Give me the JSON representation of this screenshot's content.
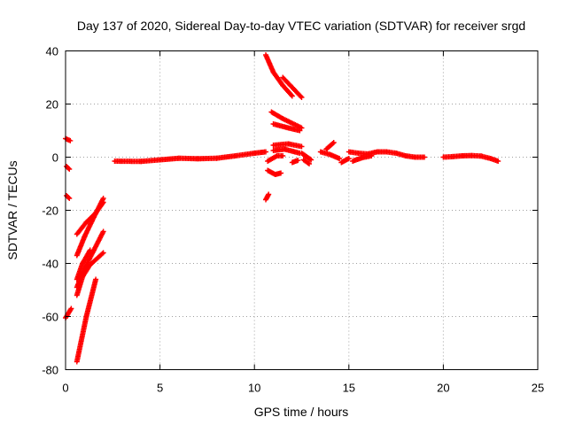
{
  "chart_data": {
    "type": "scatter",
    "title": "Day 137 of 2020, Sidereal Day-to-day VTEC variation (SDTVAR) for receiver srgd",
    "xlabel": "GPS time / hours",
    "ylabel": "SDTVAR / TECUs",
    "xlim": [
      0,
      25
    ],
    "ylim": [
      -80,
      40
    ],
    "xticks": [
      0,
      5,
      10,
      15,
      20,
      25
    ],
    "yticks": [
      -80,
      -60,
      -40,
      -20,
      0,
      20,
      40
    ],
    "grid": true,
    "marker": "+",
    "series": [
      {
        "name": "SDTVAR",
        "color": "#ff0000",
        "segments": [
          [
            [
              0.0,
              7.0
            ],
            [
              0.25,
              6.2
            ]
          ],
          [
            [
              0.05,
              -3.5
            ],
            [
              0.2,
              -4.5
            ]
          ],
          [
            [
              0.05,
              -14.5
            ],
            [
              0.2,
              -15.5
            ]
          ],
          [
            [
              0.0,
              -60.5
            ],
            [
              0.3,
              -57.0
            ]
          ],
          [
            [
              0.6,
              -77.0
            ],
            [
              1.1,
              -60.0
            ],
            [
              1.6,
              -46.0
            ]
          ],
          [
            [
              0.6,
              -52.0
            ],
            [
              0.9,
              -45.0
            ],
            [
              1.3,
              -40.5
            ],
            [
              2.0,
              -36.0
            ]
          ],
          [
            [
              0.6,
              -49.0
            ],
            [
              1.0,
              -42.0
            ],
            [
              1.5,
              -35.0
            ],
            [
              2.0,
              -28.0
            ]
          ],
          [
            [
              0.6,
              -46.0
            ],
            [
              0.9,
              -40.0
            ],
            [
              1.3,
              -35.0
            ]
          ],
          [
            [
              0.6,
              -37.0
            ],
            [
              1.0,
              -30.0
            ],
            [
              1.4,
              -24.0
            ],
            [
              2.0,
              -15.5
            ]
          ],
          [
            [
              0.6,
              -29.0
            ],
            [
              1.1,
              -24.5
            ],
            [
              1.6,
              -21.0
            ],
            [
              2.0,
              -17.0
            ]
          ],
          [
            [
              2.6,
              -1.5
            ],
            [
              4.0,
              -1.6
            ],
            [
              5.0,
              -1.0
            ],
            [
              6.0,
              -0.4
            ],
            [
              7.0,
              -0.6
            ],
            [
              8.0,
              -0.4
            ],
            [
              9.0,
              0.5
            ],
            [
              10.0,
              1.5
            ],
            [
              10.6,
              2.0
            ]
          ],
          [
            [
              10.6,
              38.5
            ],
            [
              11.0,
              32.0
            ],
            [
              11.5,
              27.0
            ],
            [
              12.0,
              23.0
            ]
          ],
          [
            [
              11.5,
              30.0
            ],
            [
              11.9,
              27.0
            ],
            [
              12.5,
              22.5
            ]
          ],
          [
            [
              10.9,
              17.0
            ],
            [
              11.5,
              14.5
            ],
            [
              12.5,
              11.0
            ]
          ],
          [
            [
              11.0,
              12.5
            ],
            [
              11.8,
              11.0
            ],
            [
              12.4,
              10.0
            ]
          ],
          [
            [
              11.0,
              4.5
            ],
            [
              11.8,
              5.0
            ],
            [
              12.5,
              4.0
            ]
          ],
          [
            [
              11.0,
              2.5
            ],
            [
              11.6,
              3.0
            ],
            [
              12.4,
              1.5
            ]
          ],
          [
            [
              10.7,
              -1.5
            ],
            [
              11.2,
              0.5
            ],
            [
              11.5,
              0.5
            ]
          ],
          [
            [
              10.7,
              -5.0
            ],
            [
              11.1,
              -6.5
            ],
            [
              11.4,
              -6.0
            ]
          ],
          [
            [
              10.6,
              -16.0
            ],
            [
              10.75,
              -14.0
            ]
          ],
          [
            [
              12.0,
              -2.0
            ],
            [
              12.3,
              -1.2
            ]
          ],
          [
            [
              12.5,
              1.5
            ],
            [
              13.0,
              -1.0
            ]
          ],
          [
            [
              12.6,
              -1.0
            ],
            [
              12.9,
              -2.5
            ]
          ],
          [
            [
              13.5,
              2.0
            ],
            [
              14.0,
              1.0
            ],
            [
              14.5,
              -0.5
            ]
          ],
          [
            [
              13.8,
              3.0
            ],
            [
              14.2,
              5.5
            ]
          ],
          [
            [
              14.6,
              -2.0
            ],
            [
              15.0,
              -0.5
            ]
          ],
          [
            [
              15.0,
              2.0
            ],
            [
              15.5,
              1.5
            ],
            [
              16.0,
              1.2
            ],
            [
              16.5,
              2.0
            ],
            [
              17.0,
              2.0
            ],
            [
              17.5,
              1.5
            ],
            [
              18.0,
              0.5
            ],
            [
              18.5,
              0.0
            ],
            [
              19.0,
              0.0
            ]
          ],
          [
            [
              15.2,
              -1.5
            ],
            [
              15.7,
              -0.2
            ],
            [
              16.2,
              0.5
            ]
          ],
          [
            [
              20.0,
              0.0
            ],
            [
              20.5,
              0.2
            ],
            [
              21.0,
              0.5
            ],
            [
              21.5,
              0.6
            ],
            [
              22.0,
              0.4
            ],
            [
              22.5,
              -0.5
            ],
            [
              22.9,
              -1.5
            ]
          ]
        ]
      }
    ]
  }
}
